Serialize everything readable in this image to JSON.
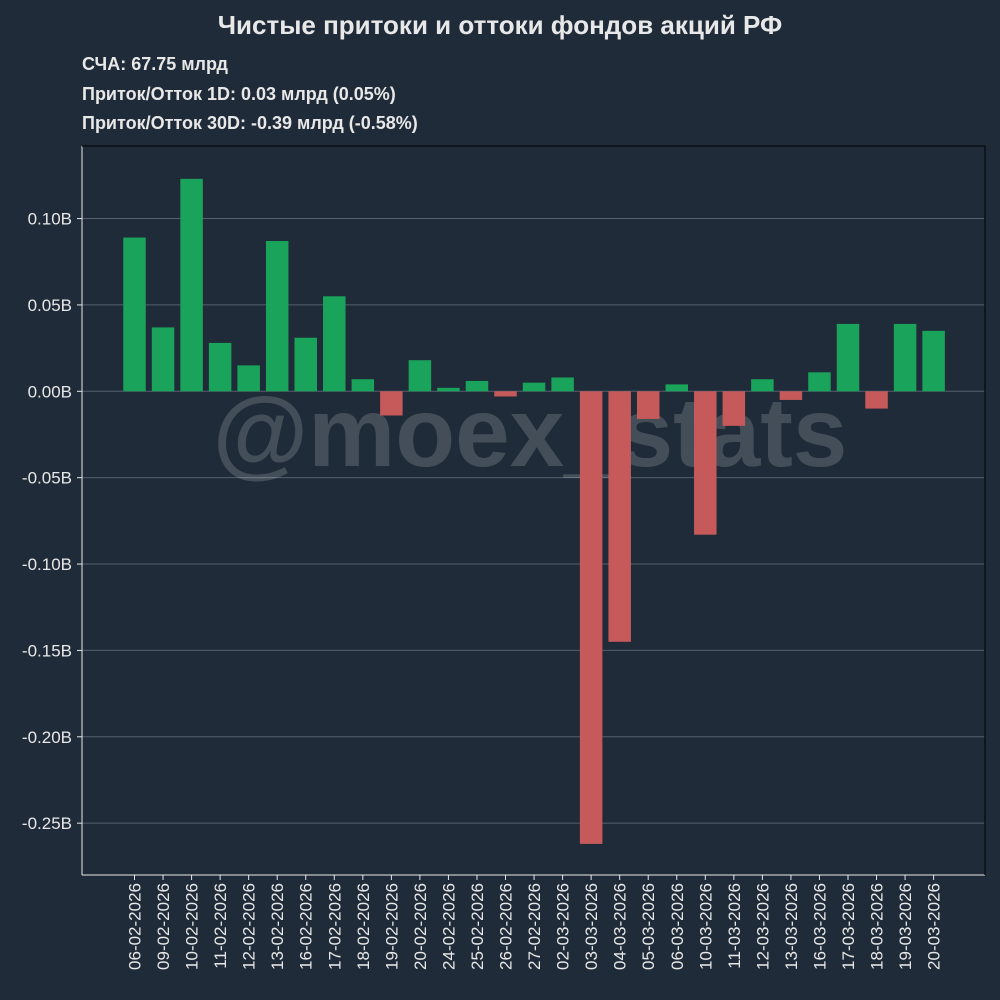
{
  "chart_data": {
    "type": "bar",
    "title": "Чистые притоки и оттоки фондов акций РФ",
    "info_lines": [
      "СЧА: 67.75 млрд",
      "Приток/Отток 1D: 0.03 млрд (0.05%)",
      "Приток/Отток 30D: -0.39 млрд (-0.58%)"
    ],
    "watermark": "@moex_stats",
    "xlabel": "",
    "ylabel": "",
    "ylim": [
      -0.28,
      0.142
    ],
    "yticks": [
      0.1,
      0.05,
      0.0,
      -0.05,
      -0.1,
      -0.15,
      -0.2,
      -0.25
    ],
    "ytick_labels": [
      "0.10B",
      "0.05B",
      "0.00B",
      "-0.05B",
      "-0.10B",
      "-0.15B",
      "-0.20B",
      "-0.25B"
    ],
    "grid": true,
    "colors": {
      "positive": "#1aa35a",
      "negative": "#c65a5a"
    },
    "categories": [
      "06-02-2026",
      "09-02-2026",
      "10-02-2026",
      "11-02-2026",
      "12-02-2026",
      "13-02-2026",
      "16-02-2026",
      "17-02-2026",
      "18-02-2026",
      "19-02-2026",
      "20-02-2026",
      "24-02-2026",
      "25-02-2026",
      "26-02-2026",
      "27-02-2026",
      "02-03-2026",
      "03-03-2026",
      "04-03-2026",
      "05-03-2026",
      "06-03-2026",
      "10-03-2026",
      "11-03-2026",
      "12-03-2026",
      "13-03-2026",
      "16-03-2026",
      "17-03-2026",
      "18-03-2026",
      "19-03-2026",
      "20-03-2026"
    ],
    "values": [
      0.089,
      0.037,
      0.123,
      0.028,
      0.015,
      0.087,
      0.031,
      0.055,
      0.007,
      -0.014,
      0.018,
      0.002,
      0.006,
      -0.003,
      0.005,
      0.008,
      -0.262,
      -0.145,
      -0.016,
      0.004,
      -0.083,
      -0.02,
      0.007,
      -0.005,
      0.011,
      0.039,
      -0.01,
      0.039,
      0.035
    ]
  }
}
